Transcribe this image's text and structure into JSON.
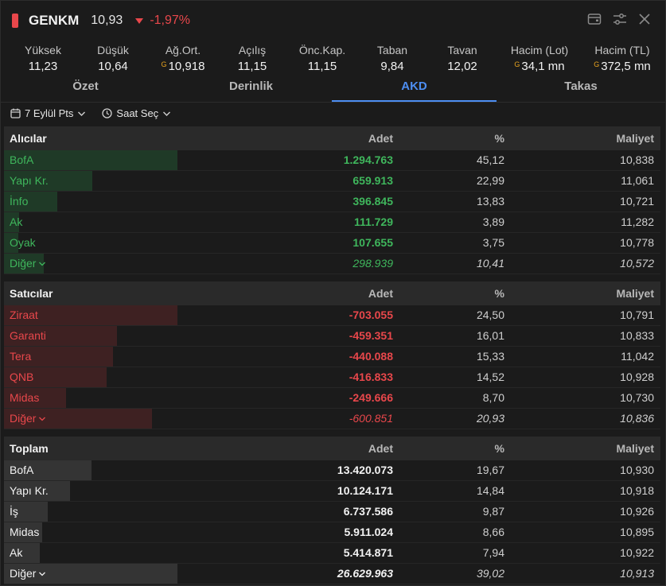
{
  "header": {
    "symbol": "GENKM",
    "price": "10,93",
    "change": "-1,97%"
  },
  "stats": [
    {
      "label": "Yüksek",
      "value": "11,23",
      "g": false
    },
    {
      "label": "Düşük",
      "value": "10,64",
      "g": false
    },
    {
      "label": "Ağ.Ort.",
      "value": "10,918",
      "g": true
    },
    {
      "label": "Açılış",
      "value": "11,15",
      "g": false
    },
    {
      "label": "Önc.Kap.",
      "value": "11,15",
      "g": false
    },
    {
      "label": "Taban",
      "value": "9,84",
      "g": false
    },
    {
      "label": "Tavan",
      "value": "12,02",
      "g": false
    },
    {
      "label": "Hacim (Lot)",
      "value": "34,1 mn",
      "g": true
    },
    {
      "label": "Hacim (TL)",
      "value": "372,5 mn",
      "g": true
    }
  ],
  "g_mark": "G",
  "tabs": [
    "Özet",
    "Derinlik",
    "AKD",
    "Takas"
  ],
  "active_tab": "AKD",
  "filters": {
    "date": "7 Eylül Pts",
    "time": "Saat Seç"
  },
  "columns": {
    "adet": "Adet",
    "pct": "%",
    "maliyet": "Maliyet"
  },
  "buyers": {
    "title": "Alıcılar",
    "rows": [
      {
        "name": "BofA",
        "adet": "1.294.763",
        "pct": "45,12",
        "maliyet": "10,838",
        "bar": 0.45
      },
      {
        "name": "Yapı Kr.",
        "adet": "659.913",
        "pct": "22,99",
        "maliyet": "11,061",
        "bar": 0.23
      },
      {
        "name": "İnfo",
        "adet": "396.845",
        "pct": "13,83",
        "maliyet": "10,721",
        "bar": 0.138
      },
      {
        "name": "Ak",
        "adet": "111.729",
        "pct": "3,89",
        "maliyet": "11,282",
        "bar": 0.039
      },
      {
        "name": "Oyak",
        "adet": "107.655",
        "pct": "3,75",
        "maliyet": "10,778",
        "bar": 0.038
      },
      {
        "name": "Diğer",
        "adet": "298.939",
        "pct": "10,41",
        "maliyet": "10,572",
        "bar": 0.104,
        "other": true
      }
    ]
  },
  "sellers": {
    "title": "Satıcılar",
    "rows": [
      {
        "name": "Ziraat",
        "adet": "-703.055",
        "pct": "24,50",
        "maliyet": "10,791",
        "bar": 0.45
      },
      {
        "name": "Garanti",
        "adet": "-459.351",
        "pct": "16,01",
        "maliyet": "10,833",
        "bar": 0.294
      },
      {
        "name": "Tera",
        "adet": "-440.088",
        "pct": "15,33",
        "maliyet": "11,042",
        "bar": 0.282
      },
      {
        "name": "QNB",
        "adet": "-416.833",
        "pct": "14,52",
        "maliyet": "10,928",
        "bar": 0.267
      },
      {
        "name": "Midas",
        "adet": "-249.666",
        "pct": "8,70",
        "maliyet": "10,730",
        "bar": 0.16
      },
      {
        "name": "Diğer",
        "adet": "-600.851",
        "pct": "20,93",
        "maliyet": "10,836",
        "bar": 0.384,
        "other": true
      }
    ]
  },
  "totals": {
    "title": "Toplam",
    "rows": [
      {
        "name": "BofA",
        "adet": "13.420.073",
        "pct": "19,67",
        "maliyet": "10,930",
        "bar": 0.227
      },
      {
        "name": "Yapı Kr.",
        "adet": "10.124.171",
        "pct": "14,84",
        "maliyet": "10,918",
        "bar": 0.171
      },
      {
        "name": "İş",
        "adet": "6.737.586",
        "pct": "9,87",
        "maliyet": "10,926",
        "bar": 0.114
      },
      {
        "name": "Midas",
        "adet": "5.911.024",
        "pct": "8,66",
        "maliyet": "10,895",
        "bar": 0.1
      },
      {
        "name": "Ak",
        "adet": "5.414.871",
        "pct": "7,94",
        "maliyet": "10,922",
        "bar": 0.092
      },
      {
        "name": "Diğer",
        "adet": "26.629.963",
        "pct": "39,02",
        "maliyet": "10,913",
        "bar": 0.45,
        "other": true
      }
    ]
  },
  "colors": {
    "up": "#3fb65c",
    "down": "#e8474b",
    "accent": "#4d8ef2",
    "buyer_bar": "#1f3a27",
    "seller_bar": "#3e2122",
    "total_bar": "#343434"
  }
}
